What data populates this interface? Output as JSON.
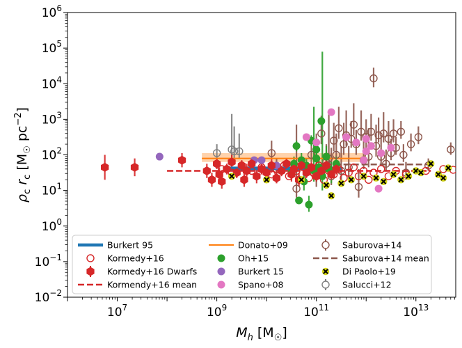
{
  "chart_data": {
    "type": "scatter",
    "title": "",
    "xlabel": "M_h [M_☉]",
    "ylabel": "ρ_c r_c [M_☉ pc^-2]",
    "x_scale": "log",
    "y_scale": "log",
    "xlim_log10": [
      6.0,
      13.8
    ],
    "ylim_log10": [
      -2,
      6
    ],
    "x_ticks": [
      {
        "log": 7,
        "base": "10",
        "exp": "7"
      },
      {
        "log": 9,
        "base": "10",
        "exp": "9"
      },
      {
        "log": 11,
        "base": "10",
        "exp": "11"
      },
      {
        "log": 13,
        "base": "10",
        "exp": "13"
      }
    ],
    "y_ticks": [
      {
        "log": -2,
        "base": "10",
        "exp": "−2"
      },
      {
        "log": -1,
        "base": "10",
        "exp": "−1"
      },
      {
        "log": 0,
        "base": "10",
        "exp": "0"
      },
      {
        "log": 1,
        "base": "10",
        "exp": "1"
      },
      {
        "log": 2,
        "base": "10",
        "exp": "2"
      },
      {
        "log": 3,
        "base": "10",
        "exp": "3"
      },
      {
        "log": 4,
        "base": "10",
        "exp": "4"
      },
      {
        "log": 5,
        "base": "10",
        "exp": "5"
      },
      {
        "log": 6,
        "base": "10",
        "exp": "6"
      }
    ],
    "legend_position": "lower-center",
    "legend": [
      {
        "label": "Burkert 95",
        "color": "#1f77b4",
        "marker": "thickline"
      },
      {
        "label": "Kormedy+16",
        "color": "#d62728",
        "marker": "open-circle"
      },
      {
        "label": "Kormedy+16 Dwarfs",
        "color": "#d62728",
        "marker": "filled-hexagon-err"
      },
      {
        "label": "Kormendy+16 mean",
        "color": "#d62728",
        "marker": "dashed"
      },
      {
        "label": "Donato+09",
        "color": "#ff7f0e",
        "marker": "line"
      },
      {
        "label": "Oh+15",
        "color": "#2ca02c",
        "marker": "filled-circle"
      },
      {
        "label": "Burkert 15",
        "color": "#9467bd",
        "marker": "filled-circle"
      },
      {
        "label": "Spano+08",
        "color": "#e377c2",
        "marker": "filled-circle"
      },
      {
        "label": "Saburova+14",
        "color": "#8c564b",
        "marker": "open-circle-err"
      },
      {
        "label": "Saburova+14 mean",
        "color": "#8c564b",
        "marker": "dashed"
      },
      {
        "label": "Di Paolo+19",
        "color": "#d4d418",
        "marker": "x-filled"
      },
      {
        "label": "Salucci+12",
        "color": "#7f7f7f",
        "marker": "open-circle-err"
      }
    ],
    "lines": {
      "burkert95": {
        "x_log": [
          9.2,
          11.5
        ],
        "y_log": 1.62,
        "color": "#1f77b4"
      },
      "donato09": {
        "x_log": [
          8.7,
          12.0
        ],
        "y_log": 1.9,
        "band_y_log": [
          1.8,
          2.05
        ],
        "color": "#ff7f0e"
      },
      "kormendy_mean": {
        "x_log": [
          8.0,
          13.3
        ],
        "y_log": 1.55,
        "color": "#d62728"
      },
      "saburova_mean": {
        "x_log": [
          11.0,
          13.3
        ],
        "y_log": 1.73,
        "color": "#8c564b"
      }
    },
    "series": {
      "kormendy_dwarfs": {
        "color": "#d62728",
        "points": [
          [
            6.75,
            1.65,
            0.35
          ],
          [
            7.35,
            1.65,
            0.25
          ],
          [
            8.3,
            1.85,
            0.2
          ],
          [
            8.8,
            1.55,
            0.2
          ],
          [
            8.9,
            1.3,
            0.2
          ],
          [
            9.0,
            1.75,
            0.15
          ],
          [
            9.05,
            1.45,
            0.2
          ],
          [
            9.1,
            1.25,
            0.2
          ],
          [
            9.2,
            1.6,
            0.15
          ],
          [
            9.3,
            1.8,
            0.2
          ],
          [
            9.4,
            1.5,
            0.15
          ],
          [
            9.5,
            1.7,
            0.15
          ],
          [
            9.55,
            1.3,
            0.2
          ],
          [
            9.6,
            1.55,
            0.2
          ],
          [
            9.7,
            1.75,
            0.15
          ],
          [
            9.8,
            1.4,
            0.2
          ],
          [
            9.9,
            1.6,
            0.15
          ],
          [
            10.0,
            1.5,
            0.15
          ],
          [
            10.1,
            1.7,
            0.2
          ],
          [
            10.2,
            1.35,
            0.15
          ],
          [
            10.3,
            1.55,
            0.15
          ],
          [
            10.4,
            1.75,
            0.15
          ],
          [
            10.5,
            1.45,
            0.2
          ],
          [
            10.55,
            1.6,
            0.15
          ],
          [
            10.65,
            1.3,
            0.2
          ],
          [
            10.7,
            1.7,
            0.15
          ],
          [
            10.8,
            1.5,
            0.15
          ],
          [
            10.9,
            1.65,
            0.15
          ],
          [
            11.0,
            1.4,
            0.15
          ],
          [
            11.1,
            1.55,
            0.15
          ],
          [
            11.2,
            1.7,
            0.15
          ],
          [
            11.3,
            1.45,
            0.15
          ],
          [
            11.4,
            1.6,
            0.15
          ]
        ]
      },
      "kormendy_open": {
        "color": "#d62728",
        "points": [
          [
            9.0,
            1.75
          ],
          [
            9.1,
            1.6
          ],
          [
            9.3,
            1.5
          ],
          [
            9.5,
            1.7
          ],
          [
            9.7,
            1.55
          ],
          [
            9.9,
            1.65
          ],
          [
            10.1,
            1.45
          ],
          [
            10.2,
            1.6
          ],
          [
            10.35,
            1.7
          ],
          [
            10.45,
            1.4
          ],
          [
            10.6,
            1.55
          ],
          [
            10.75,
            1.65
          ],
          [
            10.85,
            1.35
          ],
          [
            10.95,
            1.5
          ],
          [
            11.05,
            1.7
          ],
          [
            11.15,
            1.3
          ],
          [
            11.25,
            1.55
          ],
          [
            11.35,
            1.45
          ],
          [
            11.45,
            1.6
          ],
          [
            11.55,
            1.35
          ],
          [
            11.65,
            1.5
          ],
          [
            11.75,
            1.65
          ],
          [
            11.85,
            1.4
          ],
          [
            11.95,
            1.55
          ],
          [
            12.05,
            1.3
          ],
          [
            12.15,
            1.5
          ],
          [
            12.3,
            1.6
          ],
          [
            12.45,
            1.4
          ],
          [
            12.6,
            1.55
          ],
          [
            12.8,
            1.45
          ],
          [
            13.2,
            1.55
          ],
          [
            13.55,
            1.6
          ],
          [
            13.75,
            1.58
          ]
        ]
      },
      "oh15": {
        "color": "#2ca02c",
        "points": [
          [
            10.5,
            1.5,
            0.2,
            0.2
          ],
          [
            10.55,
            1.75,
            0.2,
            0.2
          ],
          [
            10.6,
            2.25,
            0.15,
            0.15
          ],
          [
            10.7,
            1.85,
            0.2,
            0.2
          ],
          [
            10.75,
            1.25,
            0.25,
            0.25
          ],
          [
            10.8,
            1.7,
            0.2,
            0.2
          ],
          [
            10.85,
            0.6,
            0.2,
            0.25
          ],
          [
            10.9,
            2.4,
            0.15,
            0.15
          ],
          [
            10.95,
            1.55,
            0.3,
            1.8
          ],
          [
            11.0,
            2.15,
            0.2,
            0.2
          ],
          [
            11.05,
            1.65,
            0.2,
            0.2
          ],
          [
            11.1,
            2.95,
            0.1,
            0.1
          ],
          [
            11.12,
            1.4,
            0.4,
            3.5
          ],
          [
            11.2,
            1.95,
            0.3,
            0.3
          ],
          [
            11.3,
            1.5,
            0.3,
            0.3
          ],
          [
            11.4,
            1.75,
            0.2,
            0.2
          ],
          [
            10.65,
            0.72,
            0.1,
            0.1
          ],
          [
            11.0,
            1.9,
            0.5,
            0.5
          ],
          [
            11.25,
            1.6,
            0.2,
            0.2
          ]
        ]
      },
      "burkert15": {
        "color": "#9467bd",
        "points": [
          [
            7.85,
            1.95
          ],
          [
            9.75,
            1.85
          ],
          [
            9.9,
            1.85
          ],
          [
            10.2,
            1.7
          ]
        ]
      },
      "spano08": {
        "color": "#e377c2",
        "points": [
          [
            10.8,
            2.5
          ],
          [
            11.0,
            2.35
          ],
          [
            11.3,
            3.2
          ],
          [
            11.6,
            2.5
          ],
          [
            11.8,
            2.35
          ],
          [
            12.0,
            2.45
          ],
          [
            12.1,
            2.25
          ],
          [
            12.3,
            2.05
          ],
          [
            12.5,
            2.2
          ],
          [
            12.25,
            1.05
          ],
          [
            11.95,
            1.85
          ],
          [
            12.0,
            2.1
          ]
        ]
      },
      "saburova14": {
        "color": "#8c564b",
        "points": [
          [
            10.1,
            2.05,
            0.15,
            0.35
          ],
          [
            10.2,
            1.6,
            0.15,
            0.3
          ],
          [
            10.6,
            1.05,
            0.25,
            1.8
          ],
          [
            10.9,
            2.0,
            0.2,
            0.5
          ],
          [
            11.0,
            1.4,
            0.3,
            1.2
          ],
          [
            11.1,
            2.6,
            0.3,
            0.5
          ],
          [
            11.2,
            1.8,
            0.2,
            0.5
          ],
          [
            11.25,
            1.9,
            0.25,
            1.3
          ],
          [
            11.3,
            1.4,
            0.25,
            0.8
          ],
          [
            11.35,
            2.4,
            0.3,
            0.5
          ],
          [
            11.4,
            2.0,
            0.2,
            0.6
          ],
          [
            11.45,
            2.75,
            0.3,
            0.6
          ],
          [
            11.5,
            1.55,
            0.3,
            0.7
          ],
          [
            11.55,
            2.3,
            0.3,
            0.6
          ],
          [
            11.6,
            2.55,
            0.3,
            0.7
          ],
          [
            11.65,
            1.65,
            0.3,
            0.6
          ],
          [
            11.7,
            2.45,
            0.25,
            0.5
          ],
          [
            11.75,
            2.85,
            0.3,
            0.6
          ],
          [
            11.8,
            2.3,
            0.3,
            0.4
          ],
          [
            11.85,
            1.1,
            0.3,
            0.5
          ],
          [
            11.9,
            2.65,
            0.25,
            0.6
          ],
          [
            11.95,
            1.85,
            0.25,
            0.6
          ],
          [
            12.0,
            2.5,
            0.3,
            0.5
          ],
          [
            12.05,
            1.95,
            0.3,
            0.8
          ],
          [
            12.1,
            2.65,
            0.25,
            0.5
          ],
          [
            12.15,
            4.15,
            0.25,
            0.3
          ],
          [
            12.2,
            2.25,
            0.3,
            0.6
          ],
          [
            12.25,
            2.55,
            0.2,
            0.5
          ],
          [
            12.3,
            1.95,
            0.25,
            0.6
          ],
          [
            12.35,
            2.6,
            0.25,
            0.6
          ],
          [
            12.4,
            1.75,
            0.2,
            0.4
          ],
          [
            12.45,
            2.45,
            0.25,
            0.5
          ],
          [
            12.5,
            2.05,
            0.2,
            0.4
          ],
          [
            12.55,
            2.6,
            0.25,
            0.4
          ],
          [
            12.6,
            2.2,
            0.2,
            0.3
          ],
          [
            12.7,
            2.65,
            0.2,
            0.3
          ],
          [
            12.75,
            2.0,
            0.2,
            0.3
          ],
          [
            12.8,
            1.5,
            0.2,
            0.3
          ],
          [
            12.9,
            2.3,
            0.2,
            0.3
          ],
          [
            13.05,
            2.5,
            0.2,
            0.3
          ],
          [
            13.25,
            1.7,
            0.15,
            0.2
          ],
          [
            13.7,
            2.15,
            0.15,
            0.2
          ]
        ]
      },
      "dipaolo19": {
        "color": "#d4d418",
        "points": [
          [
            9.3,
            1.4
          ],
          [
            10.0,
            1.3
          ],
          [
            10.7,
            1.3
          ],
          [
            11.2,
            1.15
          ],
          [
            11.3,
            0.85
          ],
          [
            11.5,
            1.2
          ],
          [
            11.7,
            1.3
          ],
          [
            11.95,
            1.4
          ],
          [
            12.2,
            1.35
          ],
          [
            12.35,
            1.25
          ],
          [
            12.55,
            1.45
          ],
          [
            12.7,
            1.3
          ],
          [
            12.85,
            1.4
          ],
          [
            13.0,
            1.55
          ],
          [
            13.1,
            1.5
          ],
          [
            13.3,
            1.75
          ],
          [
            13.45,
            1.45
          ],
          [
            13.55,
            1.35
          ],
          [
            13.65,
            1.63
          ]
        ]
      },
      "salucci12": {
        "color": "#7f7f7f",
        "points": [
          [
            9.0,
            2.05,
            0.2,
            0.25
          ],
          [
            9.3,
            2.15,
            0.25,
            1.0
          ],
          [
            9.35,
            2.1,
            0.2,
            0.7
          ],
          [
            9.45,
            2.1,
            0.2,
            0.5
          ]
        ]
      }
    }
  }
}
